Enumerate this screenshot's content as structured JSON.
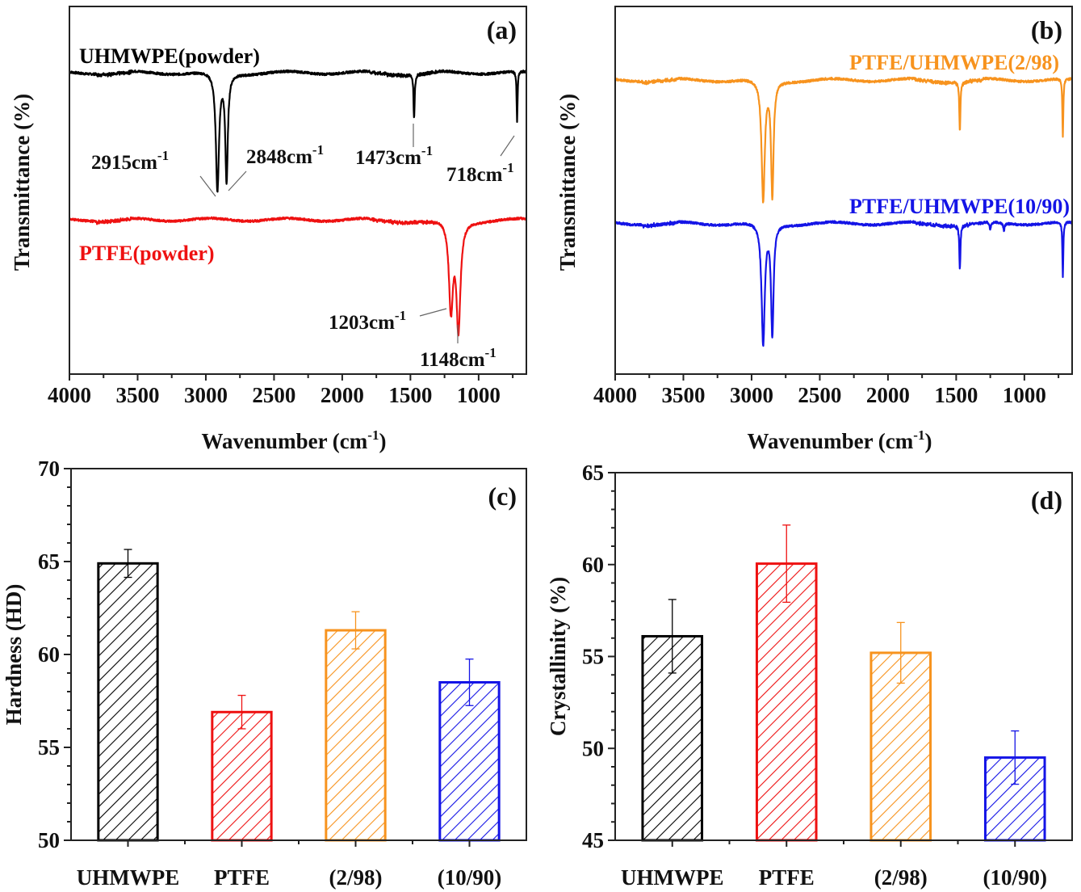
{
  "figure": {
    "panels": [
      "(a)",
      "(b)",
      "(c)",
      "(d)"
    ]
  },
  "colors": {
    "uhmwpe": "#000000",
    "ptfe": "#ee1111",
    "blend_2_98": "#f7931e",
    "blend_10_90": "#1414e6",
    "leader": "#666666"
  },
  "chart_data": [
    {
      "id": "a",
      "type": "line",
      "panel_label": "(a)",
      "xlabel": "Wavenumber (cm",
      "xlabel_sup": "-1",
      "xlabel_close": ")",
      "ylabel": "Transmittance (%)",
      "xlim": [
        4000,
        650
      ],
      "x_reversed": true,
      "xticks": [
        4000,
        3500,
        3000,
        2500,
        2000,
        1500,
        1000
      ],
      "yticks_shown": false,
      "series": [
        {
          "name": "UHMWPE(powder)",
          "color_key": "uhmwpe",
          "baseline": 0.82,
          "peaks": [
            {
              "x": 2915,
              "depth": 0.32,
              "width": 14
            },
            {
              "x": 2848,
              "depth": 0.29,
              "width": 11
            },
            {
              "x": 1473,
              "depth": 0.12,
              "width": 5
            },
            {
              "x": 718,
              "depth": 0.14,
              "width": 4
            }
          ],
          "annotations": [
            {
              "text": "2915cm",
              "sup": "-1",
              "x": 2915
            },
            {
              "text": "2848cm",
              "sup": "-1",
              "x": 2848
            },
            {
              "text": "1473cm",
              "sup": "-1",
              "x": 1473
            },
            {
              "text": "718cm",
              "sup": "-1",
              "x": 718
            }
          ]
        },
        {
          "name": "PTFE(powder)",
          "color_key": "ptfe",
          "baseline": 0.42,
          "peaks": [
            {
              "x": 1203,
              "depth": 0.24,
              "width": 18
            },
            {
              "x": 1148,
              "depth": 0.29,
              "width": 18
            }
          ],
          "annotations": [
            {
              "text": "1203cm",
              "sup": "-1",
              "x": 1203
            },
            {
              "text": "1148cm",
              "sup": "-1",
              "x": 1148
            }
          ]
        }
      ]
    },
    {
      "id": "b",
      "type": "line",
      "panel_label": "(b)",
      "xlabel": "Wavenumber (cm",
      "xlabel_sup": "-1",
      "xlabel_close": ")",
      "ylabel": "Transmittance (%)",
      "xlim": [
        4000,
        650
      ],
      "x_reversed": true,
      "xticks": [
        4000,
        3500,
        3000,
        2500,
        2000,
        1500,
        1000
      ],
      "yticks_shown": false,
      "series": [
        {
          "name": "PTFE/UHMWPE(2/98)",
          "color_key": "blend_2_98",
          "baseline": 0.8,
          "peaks": [
            {
              "x": 2915,
              "depth": 0.33,
              "width": 14
            },
            {
              "x": 2848,
              "depth": 0.31,
              "width": 11
            },
            {
              "x": 1473,
              "depth": 0.13,
              "width": 5
            },
            {
              "x": 718,
              "depth": 0.16,
              "width": 4
            }
          ]
        },
        {
          "name": "PTFE/UHMWPE(10/90)",
          "color_key": "blend_10_90",
          "baseline": 0.41,
          "peaks": [
            {
              "x": 2915,
              "depth": 0.33,
              "width": 14
            },
            {
              "x": 2848,
              "depth": 0.3,
              "width": 11
            },
            {
              "x": 1473,
              "depth": 0.12,
              "width": 5
            },
            {
              "x": 1250,
              "depth": 0.02,
              "width": 6
            },
            {
              "x": 1150,
              "depth": 0.02,
              "width": 6
            },
            {
              "x": 718,
              "depth": 0.15,
              "width": 4
            }
          ]
        }
      ]
    },
    {
      "id": "c",
      "type": "bar",
      "panel_label": "(c)",
      "xlabel": "",
      "ylabel": "Hardness (HD)",
      "ylim": [
        50,
        70
      ],
      "yticks": [
        50,
        55,
        60,
        65,
        70
      ],
      "categories": [
        "UHMWPE",
        "PTFE",
        "(2/98)",
        "(10/90)"
      ],
      "values": [
        64.9,
        56.9,
        61.3,
        58.5
      ],
      "errors": [
        0.75,
        0.9,
        1.0,
        1.25
      ],
      "bar_color_keys": [
        "uhmwpe",
        "ptfe",
        "blend_2_98",
        "blend_10_90"
      ],
      "fill": "diagonal-hatch"
    },
    {
      "id": "d",
      "type": "bar",
      "panel_label": "(d)",
      "xlabel": "",
      "ylabel": "Crystallinity (%)",
      "ylim": [
        45,
        65
      ],
      "yticks": [
        45,
        50,
        55,
        60,
        65
      ],
      "categories": [
        "UHMWPE",
        "PTFE",
        "(2/98)",
        "(10/90)"
      ],
      "values": [
        56.1,
        60.05,
        55.2,
        49.5
      ],
      "errors": [
        2.0,
        2.1,
        1.65,
        1.45
      ],
      "bar_color_keys": [
        "uhmwpe",
        "ptfe",
        "blend_2_98",
        "blend_10_90"
      ],
      "fill": "diagonal-hatch"
    }
  ]
}
